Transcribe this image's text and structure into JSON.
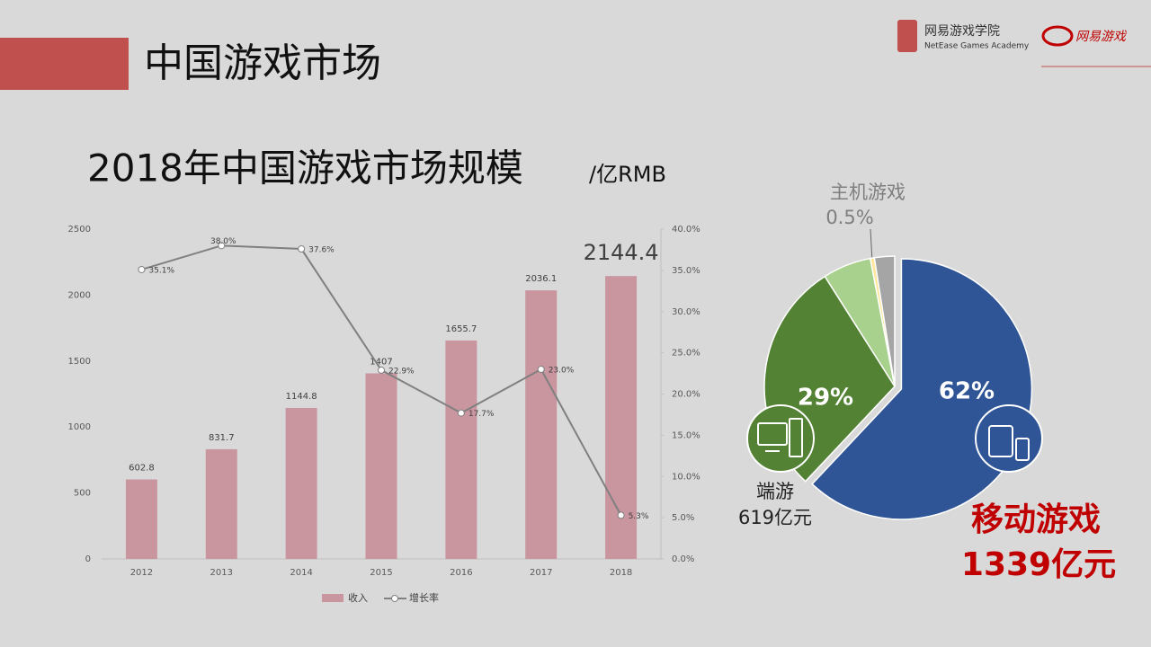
{
  "header": {
    "title": "中国游戏市场",
    "logo_text": "网易游戏学院",
    "logo_subtext": "NetEase Games Academy",
    "logo2_text": "网易游戏"
  },
  "chart_data": [
    {
      "type": "combo",
      "title": "2018年中国游戏市场规模",
      "unit": "/亿RMB",
      "categories": [
        "2012",
        "2013",
        "2014",
        "2015",
        "2016",
        "2017",
        "2018"
      ],
      "series": [
        {
          "name": "收入",
          "color": "#c9959f",
          "values": [
            602.8,
            831.7,
            1144.8,
            1407,
            1655.7,
            2036.1,
            2144.4
          ]
        },
        {
          "name": "增长率",
          "axis": "y2",
          "color": "#808080",
          "values": [
            35.1,
            38.0,
            37.6,
            22.9,
            17.7,
            23.0,
            5.3
          ],
          "value_labels": [
            "35.1%",
            "38.0%",
            "37.6%",
            "22.9%",
            "17.7%",
            "23.0%",
            "5.3%"
          ]
        }
      ],
      "ylim": [
        0,
        2500
      ],
      "yticks": [
        0,
        500,
        1000,
        1500,
        2000,
        2500
      ],
      "y2lim": [
        0,
        40
      ],
      "y2ticks": [
        {
          "value": 0,
          "label": "0.0%"
        },
        {
          "value": 5,
          "label": "5.0%"
        },
        {
          "value": 10,
          "label": "10.0%"
        },
        {
          "value": 15,
          "label": "15.0%"
        },
        {
          "value": 20,
          "label": "20.0%"
        },
        {
          "value": 25,
          "label": "25.0%"
        },
        {
          "value": 30,
          "label": "30.0%"
        },
        {
          "value": 35,
          "label": "35.0%"
        },
        {
          "value": 40,
          "label": "40.0%"
        }
      ]
    },
    {
      "type": "pie",
      "categories": [
        "移动游戏",
        "端游",
        null,
        "主机游戏",
        null
      ],
      "values": [
        62,
        29,
        6,
        0.5,
        2.5
      ],
      "value_labels": [
        "62%",
        "29%",
        null,
        "0.5%",
        null
      ],
      "amount_labels": [
        "1339亿元",
        "619亿元",
        null,
        null,
        null
      ],
      "colors": [
        "#2f5597",
        "#548235",
        "#a9d18e",
        "#ffe699",
        "#a5a5a5"
      ]
    }
  ]
}
